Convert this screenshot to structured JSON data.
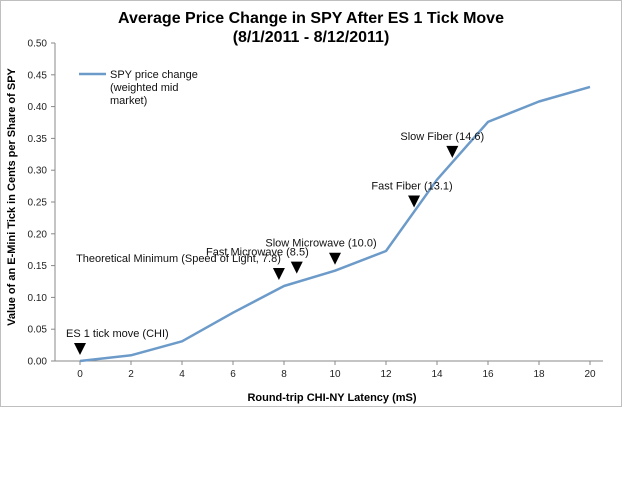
{
  "chart_data": {
    "type": "line",
    "title": "Average Price Change in SPY After ES 1 Tick Move",
    "subtitle": "(8/1/2011 - 8/12/2011)",
    "xlabel": "Round-trip CHI-NY Latency (mS)",
    "ylabel": "Value of an E-Mini Tick in Cents per Share of SPY",
    "xlim": [
      -2,
      20
    ],
    "ylim": [
      0,
      0.5
    ],
    "x_ticks": [
      "0",
      "2",
      "4",
      "6",
      "8",
      "10",
      "12",
      "14",
      "16",
      "18",
      "20"
    ],
    "y_ticks": [
      "0.00",
      "0.05",
      "0.10",
      "0.15",
      "0.20",
      "0.25",
      "0.30",
      "0.35",
      "0.40",
      "0.45",
      "0.50"
    ],
    "grid": false,
    "legend_position": "top-left",
    "series": [
      {
        "name": "SPY price change (weighted mid market)",
        "legend_lines": [
          "SPY price change",
          "(weighted mid",
          "market)"
        ],
        "color": "#6d9bc9",
        "x": [
          0,
          2,
          4,
          6,
          8,
          10,
          12,
          14,
          16,
          18,
          20
        ],
        "y": [
          0.0,
          0.009,
          0.031,
          0.076,
          0.118,
          0.142,
          0.173,
          0.285,
          0.376,
          0.408,
          0.431
        ]
      }
    ],
    "annotations": [
      {
        "text": "ES 1 tick move (CHI)",
        "x": 0.0,
        "y": 0.0
      },
      {
        "text": "Theoretical Minimum (Speed of Light, 7.8)",
        "x": 7.8,
        "y": 0.118
      },
      {
        "text": "Fast Microwave (8.5)",
        "x": 8.5,
        "y": 0.128
      },
      {
        "text": "Slow Microwave (10.0)",
        "x": 10.0,
        "y": 0.142
      },
      {
        "text": "Fast Fiber (13.1)",
        "x": 13.1,
        "y": 0.232
      },
      {
        "text": "Slow Fiber (14.6)",
        "x": 14.6,
        "y": 0.31
      }
    ]
  }
}
